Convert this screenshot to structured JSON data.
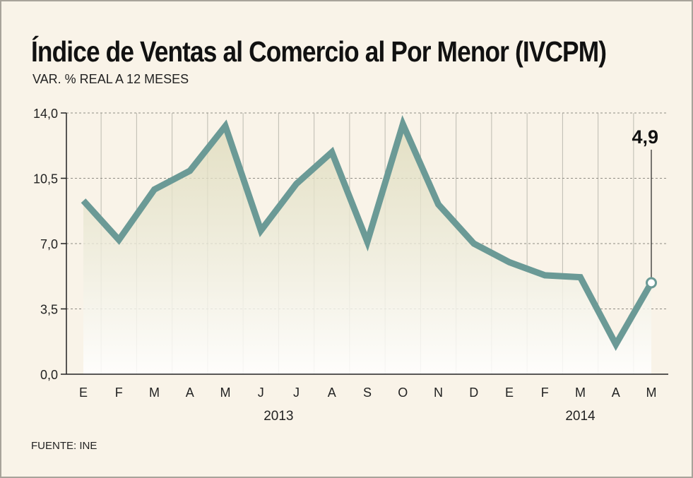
{
  "title": "Índice de Ventas al Comercio al Por Menor (IVCPM)",
  "subtitle": "VAR. % REAL A 12 MESES",
  "source": "FUENTE: INE",
  "colors": {
    "line": "#6b9a96",
    "background": "#f9f3e8",
    "area": "#e4e2c6",
    "grid": "#bdbab0"
  },
  "chart_data": {
    "type": "line",
    "title": "Índice de Ventas al Comercio al Por Menor (IVCPM)",
    "subtitle": "VAR. % REAL A 12 MESES",
    "categories": [
      "E",
      "F",
      "M",
      "A",
      "M",
      "J",
      "J",
      "A",
      "S",
      "O",
      "N",
      "D",
      "E",
      "F",
      "M",
      "A",
      "M"
    ],
    "year_labels": [
      {
        "label": "2013",
        "start_index": 0,
        "end_index": 11
      },
      {
        "label": "2014",
        "start_index": 12,
        "end_index": 16
      }
    ],
    "series": [
      {
        "values": [
          9.3,
          7.2,
          9.9,
          10.9,
          13.3,
          7.7,
          10.2,
          11.9,
          7.1,
          13.4,
          9.1,
          7.0,
          6.0,
          5.3,
          5.2,
          1.6,
          4.9
        ]
      }
    ],
    "ylim": [
      0,
      14
    ],
    "yticks": [
      "0,0",
      "3,5",
      "7,0",
      "10,5",
      "14,0"
    ],
    "ytick_values": [
      0,
      3.5,
      7,
      10.5,
      14
    ],
    "grid": true,
    "annotation": {
      "index": 16,
      "label": "4,9"
    }
  }
}
